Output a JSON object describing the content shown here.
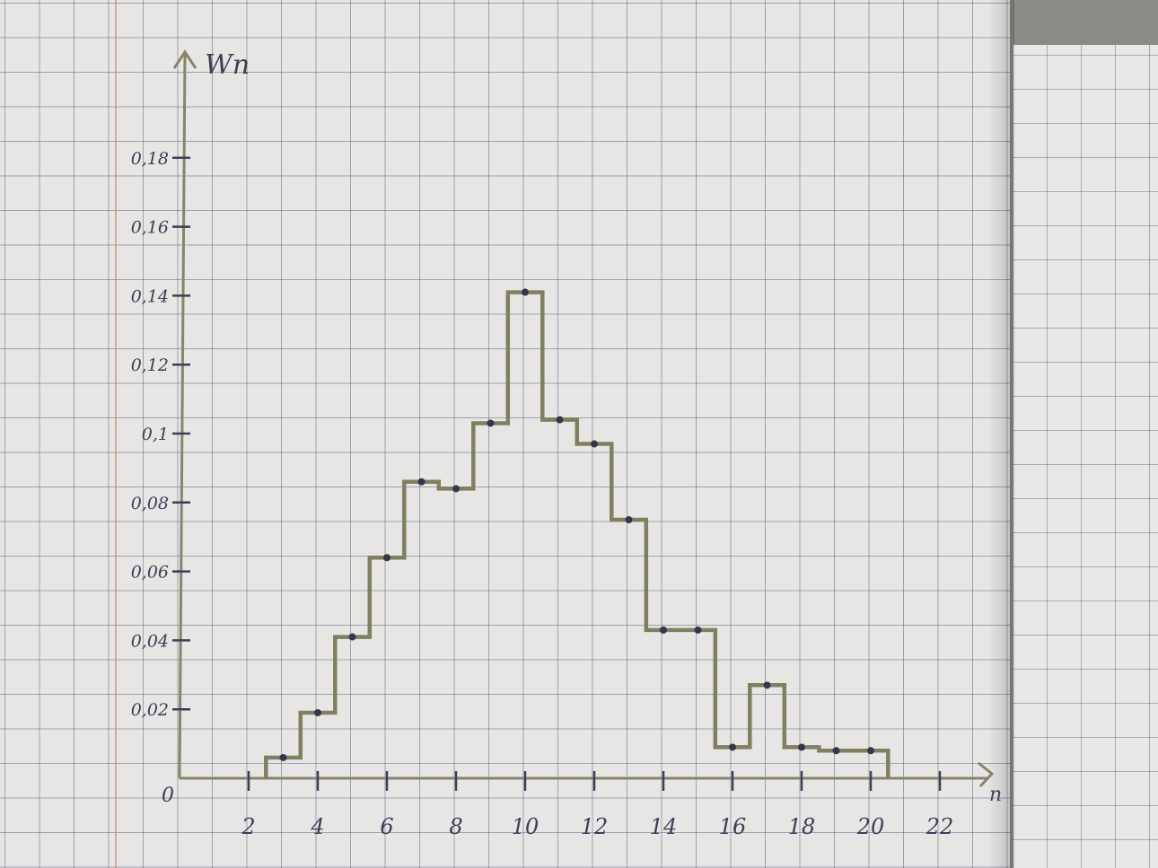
{
  "chart_data": {
    "type": "step",
    "xlabel": "n",
    "ylabel": "Wn",
    "origin_label": "0",
    "xlim": [
      0,
      22
    ],
    "ylim": [
      0,
      0.18
    ],
    "x_ticks": [
      "2",
      "4",
      "6",
      "8",
      "10",
      "12",
      "14",
      "16",
      "18",
      "20",
      "22"
    ],
    "y_ticks": [
      "0,02",
      "0,04",
      "0,06",
      "0,08",
      "0,1",
      "0,12",
      "0,14",
      "0,16",
      "0,18"
    ],
    "x": [
      3,
      4,
      5,
      6,
      7,
      8,
      9,
      10,
      11,
      12,
      13,
      14,
      15,
      16,
      17,
      18,
      19,
      20
    ],
    "values": [
      0.006,
      0.019,
      0.041,
      0.064,
      0.086,
      0.084,
      0.103,
      0.141,
      0.104,
      0.097,
      0.075,
      0.043,
      0.043,
      0.009,
      0.027,
      0.009,
      0.008,
      0.008
    ],
    "grid": true,
    "line_color": "#7f8060",
    "point_color": "#34374a",
    "ink_color": "#3c3f55",
    "axis_color": "#86866a"
  }
}
